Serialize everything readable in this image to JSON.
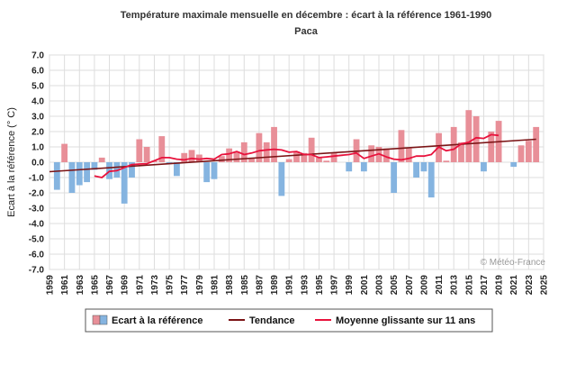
{
  "chart_data": {
    "type": "bar",
    "title": "Température maximale mensuelle en décembre : écart à la référence 1961-1990",
    "subtitle": "Paca",
    "ylabel": "Ecart à la référence (° C)",
    "xlabel": "",
    "credit": "© Météo-France",
    "xlim": [
      1959,
      2025
    ],
    "ylim": [
      -7,
      7
    ],
    "yticks": [
      "7.0",
      "6.0",
      "5.0",
      "4.0",
      "3.0",
      "2.0",
      "1.0",
      "0.0",
      "-1.0",
      "-2.0",
      "-3.0",
      "-4.0",
      "-5.0",
      "-6.0",
      "-7.0"
    ],
    "xticks": [
      "1959",
      "1961",
      "1963",
      "1965",
      "1967",
      "1969",
      "1971",
      "1973",
      "1975",
      "1977",
      "1979",
      "1981",
      "1983",
      "1985",
      "1987",
      "1989",
      "1991",
      "1993",
      "1995",
      "1997",
      "1999",
      "2001",
      "2003",
      "2005",
      "2007",
      "2009",
      "2011",
      "2013",
      "2015",
      "2017",
      "2019",
      "2021",
      "2023",
      "2025"
    ],
    "grid": true,
    "legend_position": "bottom",
    "series": [
      {
        "name": "Ecart à la référence",
        "kind": "bar",
        "positive_color": "#e88f98",
        "negative_color": "#85b4e0",
        "x": [
          1960,
          1961,
          1962,
          1963,
          1964,
          1965,
          1966,
          1967,
          1968,
          1969,
          1970,
          1971,
          1972,
          1973,
          1974,
          1975,
          1976,
          1977,
          1978,
          1979,
          1980,
          1981,
          1982,
          1983,
          1984,
          1985,
          1986,
          1987,
          1988,
          1989,
          1990,
          1991,
          1992,
          1993,
          1994,
          1995,
          1996,
          1997,
          1998,
          1999,
          2000,
          2001,
          2002,
          2003,
          2004,
          2005,
          2006,
          2007,
          2008,
          2009,
          2010,
          2011,
          2012,
          2013,
          2014,
          2015,
          2016,
          2017,
          2018,
          2019,
          2020,
          2021,
          2022,
          2023,
          2024
        ],
        "values": [
          -1.8,
          1.2,
          -2.0,
          -1.5,
          -1.3,
          -0.5,
          0.3,
          -1.1,
          -1.0,
          -2.7,
          -1.0,
          1.5,
          1.0,
          0.1,
          1.7,
          -0.1,
          -0.9,
          0.6,
          0.8,
          0.5,
          -1.3,
          -1.1,
          0.4,
          0.9,
          0.7,
          1.3,
          0.3,
          1.9,
          1.3,
          2.3,
          -2.2,
          0.2,
          0.7,
          0.6,
          1.6,
          0.3,
          0.1,
          0.6,
          0.0,
          -0.6,
          1.5,
          -0.6,
          1.1,
          1.0,
          0.9,
          -2.0,
          2.1,
          0.9,
          -1.0,
          -0.6,
          -2.3,
          1.9,
          0.1,
          2.3,
          1.3,
          3.4,
          3.0,
          -0.6,
          2.0,
          2.7,
          0.0,
          -0.3,
          1.1,
          1.4,
          2.3
        ]
      },
      {
        "name": "Tendance",
        "kind": "line",
        "color": "#7b1416",
        "x": [
          1959,
          2024
        ],
        "values": [
          -0.62,
          1.5
        ]
      },
      {
        "name": "Moyenne glissante sur 11 ans",
        "kind": "line",
        "color": "#e8123c",
        "x": [
          1965,
          1966,
          1967,
          1968,
          1969,
          1970,
          1971,
          1972,
          1973,
          1974,
          1975,
          1976,
          1977,
          1978,
          1979,
          1980,
          1981,
          1982,
          1983,
          1984,
          1985,
          1986,
          1987,
          1988,
          1989,
          1990,
          1991,
          1992,
          1993,
          1994,
          1995,
          1996,
          1997,
          1998,
          1999,
          2000,
          2001,
          2002,
          2003,
          2004,
          2005,
          2006,
          2007,
          2008,
          2009,
          2010,
          2011,
          2012,
          2013,
          2014,
          2015,
          2016,
          2017,
          2018,
          2019
        ],
        "values": [
          -0.9,
          -1.0,
          -0.6,
          -0.55,
          -0.35,
          -0.15,
          -0.12,
          -0.1,
          0.1,
          0.3,
          0.3,
          0.2,
          0.15,
          0.25,
          0.2,
          0.25,
          0.2,
          0.5,
          0.55,
          0.7,
          0.5,
          0.6,
          0.75,
          0.8,
          0.85,
          0.8,
          0.65,
          0.7,
          0.5,
          0.5,
          0.3,
          0.35,
          0.4,
          0.45,
          0.5,
          0.6,
          0.25,
          0.4,
          0.55,
          0.35,
          0.2,
          0.15,
          0.25,
          0.4,
          0.4,
          0.5,
          1.0,
          0.75,
          0.85,
          1.2,
          1.3,
          1.6,
          1.55,
          1.8,
          1.75
        ]
      }
    ]
  }
}
